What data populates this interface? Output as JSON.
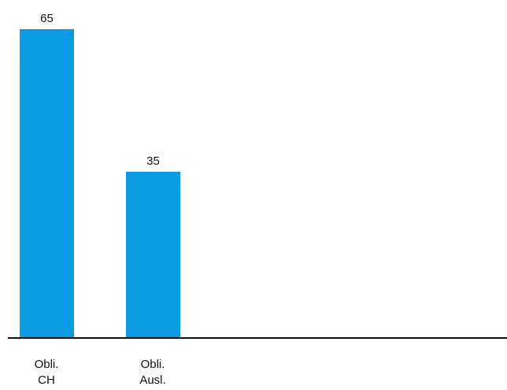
{
  "chart_data": {
    "type": "bar",
    "categories": [
      "Obli.\nCH",
      "Obli.\nAusl."
    ],
    "values": [
      65,
      35
    ],
    "data_labels": [
      "65",
      "35"
    ],
    "title": "",
    "xlabel": "",
    "ylabel": "",
    "ylim": [
      0,
      70
    ],
    "grid": false,
    "legend": "none",
    "bar_color": "#0a9be3",
    "axis_color": "#111111"
  }
}
